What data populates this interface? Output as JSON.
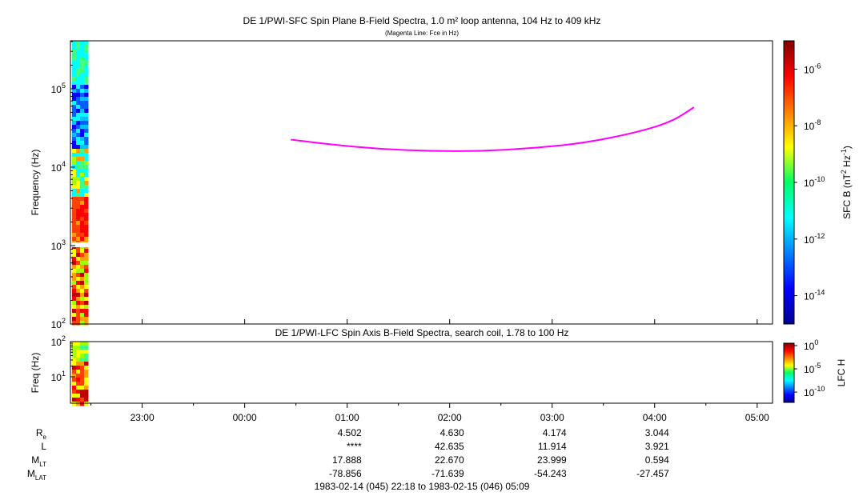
{
  "chart_data": [
    {
      "type": "heatmap",
      "title": "DE 1/PWI-SFC  Spin Plane B-Field Spectra, 1.0 m² loop antenna, 104 Hz to 409 kHz",
      "subtitle": "(Magenta Line: Fce in Hz)",
      "ylabel": "Frequency (Hz)",
      "yscale": "log",
      "ylim": [
        100,
        409000
      ],
      "yticks": [
        {
          "base": "10",
          "exp": "2"
        },
        {
          "base": "10",
          "exp": "3"
        },
        {
          "base": "10",
          "exp": "4"
        },
        {
          "base": "10",
          "exp": "5"
        }
      ],
      "colorbar": {
        "label": "SFC B (nT",
        "label_sup1": "2",
        "label_mid": " Hz",
        "label_sup2": "-1",
        "label_end": ")",
        "scale": "log",
        "ticks": [
          {
            "base": "10",
            "exp": "-6"
          },
          {
            "base": "10",
            "exp": "-8"
          },
          {
            "base": "10",
            "exp": "-10"
          },
          {
            "base": "10",
            "exp": "-12"
          },
          {
            "base": "10",
            "exp": "-14"
          }
        ]
      },
      "fce_line": {
        "color": "#ff00ff",
        "points": [
          {
            "t": "00:27",
            "f": 22500
          },
          {
            "t": "00:50",
            "f": 19500
          },
          {
            "t": "01:20",
            "f": 17000
          },
          {
            "t": "01:50",
            "f": 16000
          },
          {
            "t": "02:20",
            "f": 16100
          },
          {
            "t": "02:50",
            "f": 17500
          },
          {
            "t": "03:20",
            "f": 20500
          },
          {
            "t": "03:50",
            "f": 28000
          },
          {
            "t": "04:10",
            "f": 38000
          },
          {
            "t": "04:23",
            "f": 58000
          }
        ]
      }
    },
    {
      "type": "heatmap",
      "title": "DE 1/PWI-LFC  Spin Axis B-Field Spectra, search coil, 1.78 to 100 Hz",
      "ylabel": "Freq (Hz)",
      "yscale": "log",
      "ylim": [
        1.78,
        100
      ],
      "yticks": [
        {
          "base": "10",
          "exp": "1"
        },
        {
          "base": "10",
          "exp": "2"
        }
      ],
      "colorbar": {
        "label": "LFC H",
        "scale": "log",
        "ticks": [
          {
            "base": "10",
            "exp": "0"
          },
          {
            "base": "10",
            "exp": "-5"
          },
          {
            "base": "10",
            "exp": "-10"
          }
        ]
      }
    }
  ],
  "time_axis": {
    "range_label": "1983-02-14 (045) 22:18 to 1983-02-15 (046) 05:09",
    "ticks": [
      "23:00",
      "00:00",
      "01:00",
      "02:00",
      "03:00",
      "04:00",
      "05:00"
    ]
  },
  "ephemeris": {
    "rows": [
      {
        "label": "R",
        "sub": "e",
        "values": [
          "4.502",
          "4.630",
          "4.174",
          "3.044"
        ]
      },
      {
        "label": "L",
        "sub": "",
        "values": [
          "****",
          "42.635",
          "11.914",
          "3.921"
        ]
      },
      {
        "label": "M",
        "sub": "LT",
        "values": [
          "17.888",
          "22.670",
          "23.999",
          "0.594"
        ]
      },
      {
        "label": "M",
        "sub": "LAT",
        "values": [
          "-78.856",
          "-71.639",
          "-54.243",
          "-27.457"
        ]
      }
    ]
  }
}
